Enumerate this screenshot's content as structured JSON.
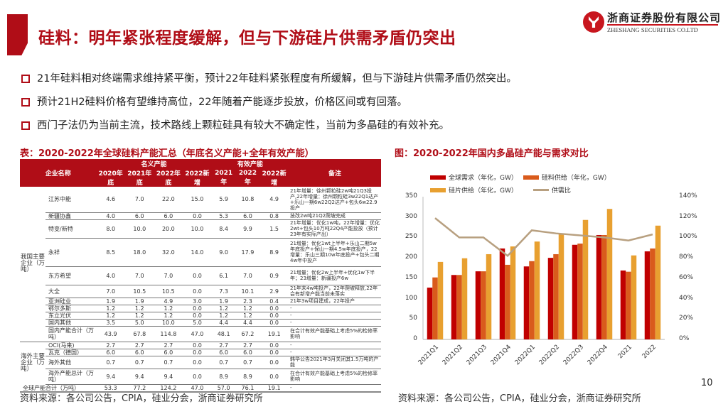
{
  "header": {
    "title": "硅料：明年紧张程度缓解，但与下游硅片供需矛盾仍突出",
    "logo_cn": "浙商证券股份有限公司",
    "logo_en": "ZHESHANG SECURITIES CO.LTD",
    "accent_color": "#b00d17"
  },
  "bullets": [
    "21年硅料相对终端需求维持紧平衡，预计22年硅料紧张程度有所缓解，但与下游硅片供需矛盾仍然突出。",
    "预计21H2硅料价格有望维持高位，22年随着产能逐步投放，价格区间或有回落。",
    "西门子法仍为当前主流，技术路线上颗粒硅具有较大不确定性，当前为多晶硅的有效补充。"
  ],
  "table": {
    "title": "表：2020-2022年全球硅料产能汇总（年底名义产能+全年有效产能）",
    "header": {
      "company": "企业名称",
      "nominal_group": "名义产能",
      "effective_group": "有效产能",
      "note": "备注",
      "columns": [
        "2020年底",
        "2021年底",
        "2022年底",
        "2022新增",
        "2021年",
        "2022年",
        "2022新增"
      ]
    },
    "groups": [
      {
        "label": "我国主要企业（万吨）",
        "rows": [
          {
            "name": "江苏中能",
            "values": [
              "4.6",
              "7.0",
              "22.0",
              "15.0",
              "5.9",
              "10.8",
              "4.9"
            ],
            "note": "21年增量：徐州颗粒硅2w吨21Q3投产,22年增量：徐州颗粒硅3w22Q1达产+乐山一期6w22Q2达产+包头6w22.9投产"
          },
          {
            "name": "新疆协鑫",
            "values": [
              "4.0",
              "6.0",
              "6.0",
              "0.0",
              "5.3",
              "6.0",
              "0.8"
            ],
            "note": "技改2w吨21Q2爬坡完成"
          },
          {
            "name": "特变/新特",
            "values": [
              "8.0",
              "10.0",
              "20.0",
              "10.0",
              "8.4",
              "9.9",
              "1.5"
            ],
            "note": "21年增量：优化1w吨，22年增量：优化2wt+包头10万吨22Q4产能投放（预计23年有实际产出）"
          },
          {
            "name": "永祥",
            "values": [
              "8.5",
              "18.0",
              "32.0",
              "14.0",
              "9.0",
              "17.9",
              "8.9"
            ],
            "note": "21增量：优化1wt上半年+乐山二期5w年底投产+保山一期4.5w年底投产，22增量：乐山三期10w年底投产+包头二期4w年中投产"
          },
          {
            "name": "东方希望",
            "values": [
              "4.0",
              "7.0",
              "7.0",
              "0.0",
              "6.1",
              "7.0",
              "0.9"
            ],
            "note": "21增量：优化2w上半年+优化1w下半年；23增量：新疆投产6w"
          },
          {
            "name": "大全",
            "values": [
              "7.0",
              "10.5",
              "10.5",
              "0.0",
              "7.3",
              "10.1",
              "2.9"
            ],
            "note": "21年末4w吨投产，22年爬坡释放,22年会有新增产能当前未落实"
          },
          {
            "name": "亚洲硅业",
            "values": [
              "1.9",
              "1.9",
              "4.9",
              "3.0",
              "1.9",
              "2.3",
              "0.4"
            ],
            "note": "21年3w项目建成，22年投产"
          },
          {
            "name": "鄂尔多斯",
            "values": [
              "1.2",
              "1.2",
              "1.2",
              "0.0",
              "1.2",
              "1.2",
              "0.0"
            ],
            "note": "-"
          },
          {
            "name": "东立光伏",
            "values": [
              "1.2",
              "1.2",
              "1.2",
              "0.0",
              "1.2",
              "1.2",
              "0.0"
            ],
            "note": "-"
          },
          {
            "name": "国内其他",
            "values": [
              "3.5",
              "5.0",
              "10.0",
              "5.0",
              "4.4",
              "4.4",
              "0.0"
            ],
            "note": "-"
          },
          {
            "name": "国内产能合计（万吨）",
            "values": [
              "43.9",
              "67.8",
              "114.8",
              "47.0",
              "48.1",
              "67.2",
              "19.1"
            ],
            "note": "在合计有效产能基础上考虑5%的检修率影响"
          }
        ]
      },
      {
        "label": "海外主要企业（万吨）",
        "rows": [
          {
            "name": "OCI(马来)",
            "values": [
              "2.7",
              "2.7",
              "2.7",
              "0.0",
              "2.7",
              "2.7",
              "0.0"
            ],
            "note": "-"
          },
          {
            "name": "瓦克（德国）",
            "values": [
              "6.0",
              "6.0",
              "6.0",
              "0.0",
              "6.0",
              "6.0",
              "0.0"
            ],
            "note": "-"
          },
          {
            "name": "海外其他",
            "values": [
              "0.7",
              "0.7",
              "0.7",
              "0.0",
              "0.7",
              "0.7",
              "0.0"
            ],
            "note": "韩华公告2021年3月关闭其1.5万吨的产能"
          },
          {
            "name": "海外产能总计（万吨）",
            "values": [
              "9.4",
              "9.4",
              "9.4",
              "0.0",
              "8.9",
              "8.9",
              "0.0"
            ],
            "note": "在合计有效产能基础上考虑5%的检修率影响"
          }
        ]
      }
    ],
    "total": {
      "name": "全球产能合计（万吨）",
      "values": [
        "53.3",
        "77.2",
        "124.2",
        "47.0",
        "57.0",
        "76.1",
        "19.1"
      ],
      "note": "-"
    },
    "source": "资料来源：各公司公告，CPIA，硅业分会，浙商证券研究所"
  },
  "chart_title": "图：2020-2022年国内多晶硅产能与需求对比",
  "chart_source": "资料来源：各公司公告，CPIA，硅业分会，浙商证券研究所",
  "page_number": "10",
  "chart_data": {
    "type": "bar",
    "title": "2020-2022年国内多晶硅产能与需求对比",
    "categories": [
      "2021Q1",
      "2021Q2",
      "2021Q3",
      "2021Q4",
      "2022Q1",
      "2022Q2",
      "2022Q3",
      "2022Q4",
      "2021",
      "2022"
    ],
    "series": [
      {
        "name": "全球需求（年化，GW）",
        "type": "bar",
        "color": "#c00000",
        "values": [
          127,
          158,
          167,
          223,
          179,
          200,
          232,
          256,
          169,
          216
        ]
      },
      {
        "name": "硅料供给（年化，GW）",
        "type": "bar",
        "color": "#d95b1c",
        "values": [
          152,
          158,
          167,
          183,
          192,
          209,
          235,
          256,
          166,
          223
        ]
      },
      {
        "name": "硅片供给（年化，GW）",
        "type": "bar",
        "color": "#e8a030",
        "values": [
          190,
          199,
          209,
          228,
          240,
          258,
          293,
          320,
          206,
          279
        ]
      },
      {
        "name": "供需比",
        "type": "line",
        "axis": "right",
        "color": "#b8a080",
        "values": [
          1.19,
          1.0,
          1.0,
          0.82,
          1.07,
          1.04,
          1.02,
          1.0,
          0.97,
          1.03
        ]
      }
    ],
    "ylim": [
      0,
      350
    ],
    "yticks": [
      "0",
      "50",
      "100",
      "150",
      "200",
      "250",
      "300",
      "350"
    ],
    "y2lim": [
      0,
      1.4
    ],
    "y2ticks": [
      "0%",
      "20%",
      "40%",
      "60%",
      "80%",
      "100%",
      "120%",
      "140%"
    ],
    "legend_position": "top",
    "grid": false,
    "xlabel": "",
    "ylabel": ""
  }
}
